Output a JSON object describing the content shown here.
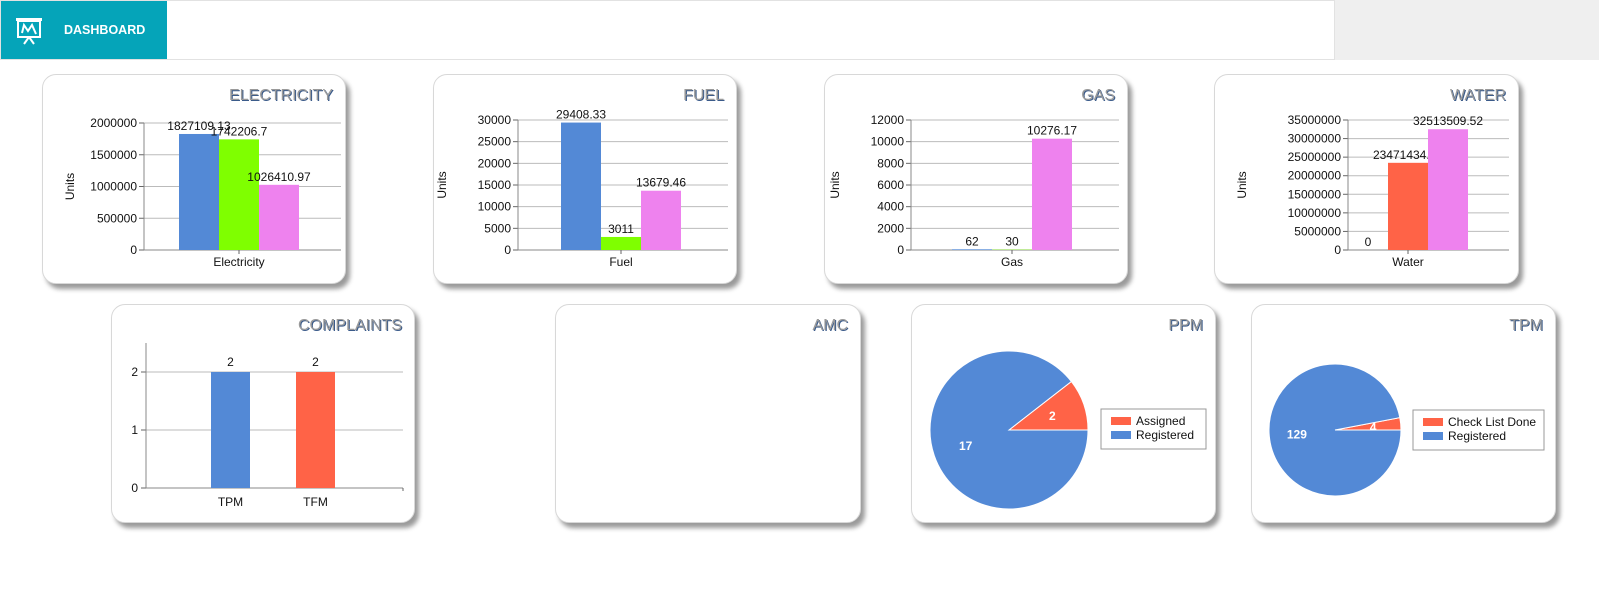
{
  "header": {
    "title": "DASHBOARD",
    "icon": "presentation-chart-icon",
    "brand_color": "#05a4b9"
  },
  "chart_data": [
    {
      "id": "electricity",
      "type": "bar",
      "title": "ELECTRICITY",
      "ylabel": "Units",
      "categories": [
        "Electricity"
      ],
      "ylim": [
        0,
        2000000
      ],
      "yticks": [
        0,
        500000,
        1000000,
        1500000,
        2000000
      ],
      "series": [
        {
          "values": [
            1827109.13
          ],
          "labels": [
            "1827109.13"
          ],
          "color": "#5389d6"
        },
        {
          "values": [
            1742206.7
          ],
          "labels": [
            "1742206.7"
          ],
          "color": "#7fff00"
        },
        {
          "values": [
            1026410.97
          ],
          "labels": [
            "1026410.97"
          ],
          "color": "#ee82ee"
        }
      ],
      "grid": true
    },
    {
      "id": "fuel",
      "type": "bar",
      "title": "FUEL",
      "ylabel": "Units",
      "categories": [
        "Fuel"
      ],
      "ylim": [
        0,
        30000
      ],
      "yticks": [
        0,
        5000,
        10000,
        15000,
        20000,
        25000,
        30000
      ],
      "series": [
        {
          "values": [
            29408.33
          ],
          "labels": [
            "29408.33"
          ],
          "color": "#5389d6"
        },
        {
          "values": [
            3011
          ],
          "labels": [
            "3011"
          ],
          "color": "#7fff00"
        },
        {
          "values": [
            13679.46
          ],
          "labels": [
            "13679.46"
          ],
          "color": "#ee82ee"
        }
      ],
      "grid": true
    },
    {
      "id": "gas",
      "type": "bar",
      "title": "GAS",
      "ylabel": "Units",
      "categories": [
        "Gas"
      ],
      "ylim": [
        0,
        12000
      ],
      "yticks": [
        0,
        2000,
        4000,
        6000,
        8000,
        10000,
        12000
      ],
      "series": [
        {
          "values": [
            62
          ],
          "labels": [
            "62"
          ],
          "color": "#5389d6"
        },
        {
          "values": [
            30
          ],
          "labels": [
            "30"
          ],
          "color": "#7fff00"
        },
        {
          "values": [
            10276.17
          ],
          "labels": [
            "10276.17"
          ],
          "color": "#ee82ee"
        }
      ],
      "grid": true
    },
    {
      "id": "water",
      "type": "bar",
      "title": "WATER",
      "ylabel": "Units",
      "categories": [
        "Water"
      ],
      "ylim": [
        0,
        35000000
      ],
      "yticks": [
        0,
        5000000,
        10000000,
        15000000,
        20000000,
        25000000,
        30000000,
        35000000
      ],
      "series": [
        {
          "values": [
            0
          ],
          "labels": [
            "0"
          ],
          "color": "#5389d6"
        },
        {
          "values": [
            23471434.75
          ],
          "labels": [
            "23471434.75"
          ],
          "color": "#ff6347"
        },
        {
          "values": [
            32513509.52
          ],
          "labels": [
            "32513509.52"
          ],
          "color": "#ee82ee"
        }
      ],
      "grid": true
    },
    {
      "id": "complaints",
      "type": "bar",
      "title": "COMPLAINTS",
      "ylabel": "",
      "categories": [
        "TPM",
        "TFM"
      ],
      "ylim": [
        0,
        2.5
      ],
      "yticks": [
        0,
        1,
        2
      ],
      "points": [
        {
          "category": "TPM",
          "value": 2,
          "label": "2",
          "color": "#5389d6"
        },
        {
          "category": "TFM",
          "value": 2,
          "label": "2",
          "color": "#ff6347"
        }
      ],
      "grid": true
    },
    {
      "id": "amc",
      "type": "pie",
      "title": "AMC",
      "slices": []
    },
    {
      "id": "ppm",
      "type": "pie",
      "title": "PPM",
      "legend": "right",
      "slices": [
        {
          "name": "Assigned",
          "value": 2,
          "color": "#ff6347"
        },
        {
          "name": "Registered",
          "value": 17,
          "color": "#5389d6"
        }
      ]
    },
    {
      "id": "tpm",
      "type": "pie",
      "title": "TPM",
      "legend": "right",
      "slices": [
        {
          "name": "Check List Done",
          "value": 4,
          "color": "#ff6347"
        },
        {
          "name": "Registered",
          "value": 129,
          "color": "#5389d6"
        }
      ]
    }
  ]
}
